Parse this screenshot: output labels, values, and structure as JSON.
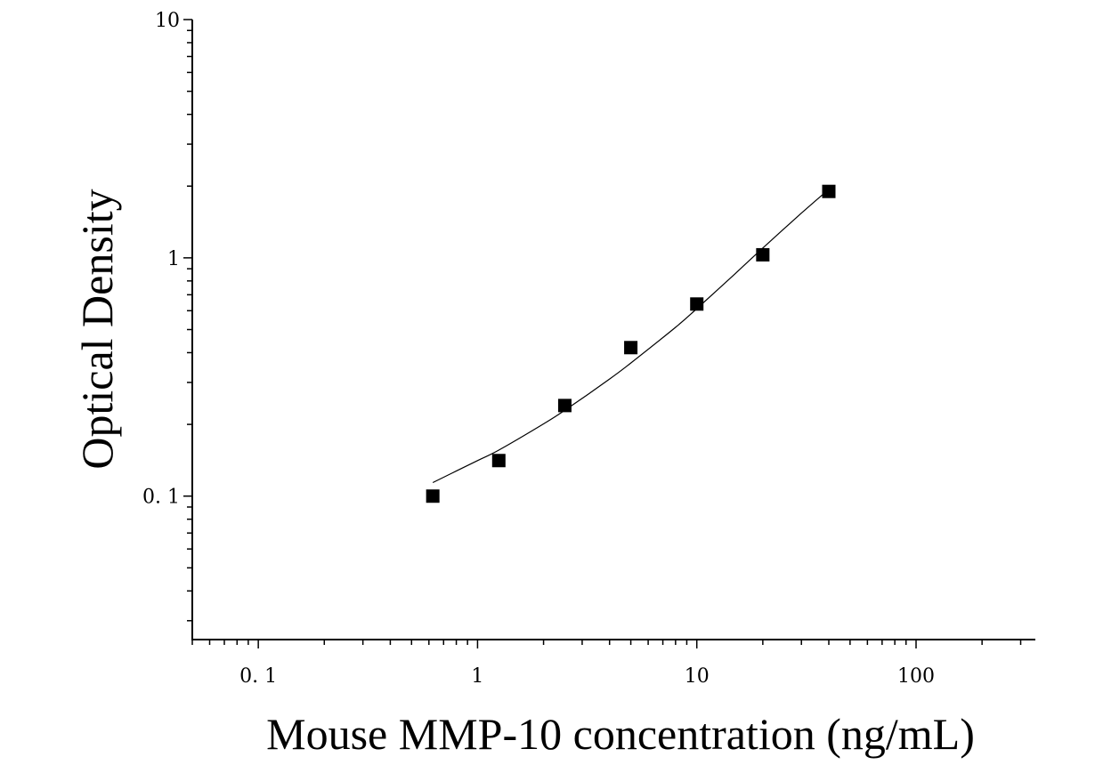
{
  "chart_data": {
    "type": "scatter",
    "xlabel": "Mouse MMP-10 concentration (ng/mL)",
    "ylabel": "Optical Density",
    "x_scale": "log",
    "y_scale": "log",
    "xlim": [
      0.05,
      350
    ],
    "ylim": [
      0.025,
      10
    ],
    "x_ticks": [
      {
        "value": 0.1,
        "label": "0. 1"
      },
      {
        "value": 1,
        "label": "1"
      },
      {
        "value": 10,
        "label": "10"
      },
      {
        "value": 100,
        "label": "100"
      }
    ],
    "y_ticks": [
      {
        "value": 0.1,
        "label": "0. 1"
      },
      {
        "value": 1,
        "label": "1"
      },
      {
        "value": 10,
        "label": "10"
      }
    ],
    "grid": false,
    "series": [
      {
        "points": [
          {
            "x": 0.625,
            "y": 0.1
          },
          {
            "x": 1.25,
            "y": 0.141
          },
          {
            "x": 2.5,
            "y": 0.24
          },
          {
            "x": 5,
            "y": 0.42
          },
          {
            "x": 10,
            "y": 0.64
          },
          {
            "x": 20,
            "y": 1.03
          },
          {
            "x": 40,
            "y": 1.9
          }
        ]
      }
    ],
    "fit_curve": {
      "x": [
        0.625,
        1,
        1.25,
        2,
        2.5,
        4,
        5,
        8,
        10,
        15,
        20,
        30,
        40
      ],
      "y": [
        0.114,
        0.141,
        0.156,
        0.201,
        0.229,
        0.31,
        0.362,
        0.511,
        0.612,
        0.86,
        1.1,
        1.54,
        1.94
      ]
    }
  }
}
